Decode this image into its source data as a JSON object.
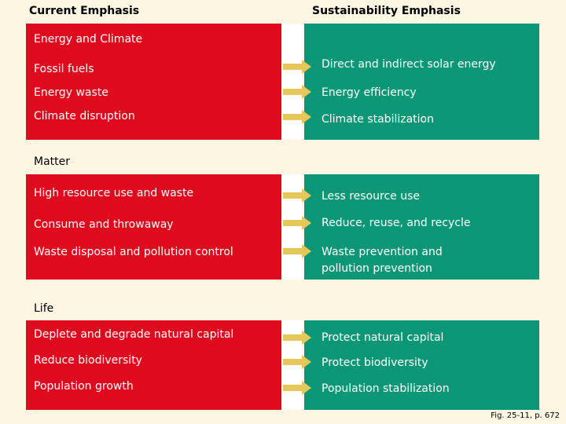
{
  "headers": {
    "current": "Current Emphasis",
    "sustainability": "Sustainability Emphasis"
  },
  "sections": [
    {
      "title": "Energy and Climate",
      "rows": [
        {
          "current": "Fossil fuels",
          "sustainable": "Direct and indirect solar energy"
        },
        {
          "current": "Energy waste",
          "sustainable": "Energy efficiency"
        },
        {
          "current": "Climate disruption",
          "sustainable": "Climate stabilization"
        }
      ]
    },
    {
      "title": "Matter",
      "rows": [
        {
          "current": "High resource use and waste",
          "sustainable": "Less resource use"
        },
        {
          "current": "Consume and throwaway",
          "sustainable": "Reduce, reuse, and recycle"
        },
        {
          "current": "Waste disposal and pollution control",
          "sustainable": "Waste prevention and pollution prevention"
        }
      ]
    },
    {
      "title": "Life",
      "rows": [
        {
          "current": "Deplete and degrade natural capital",
          "sustainable": "Protect natural capital"
        },
        {
          "current": "Reduce biodiversity",
          "sustainable": "Protect biodiversity"
        },
        {
          "current": "Population growth",
          "sustainable": "Population stabilization"
        }
      ]
    }
  ],
  "figure_ref": "Fig. 25-11, p. 672",
  "colors": {
    "current_panel": "#df0a1e",
    "sustainable_panel": "#0b9676",
    "arrow": "#e6c85a",
    "background": "#fdf6e3"
  }
}
